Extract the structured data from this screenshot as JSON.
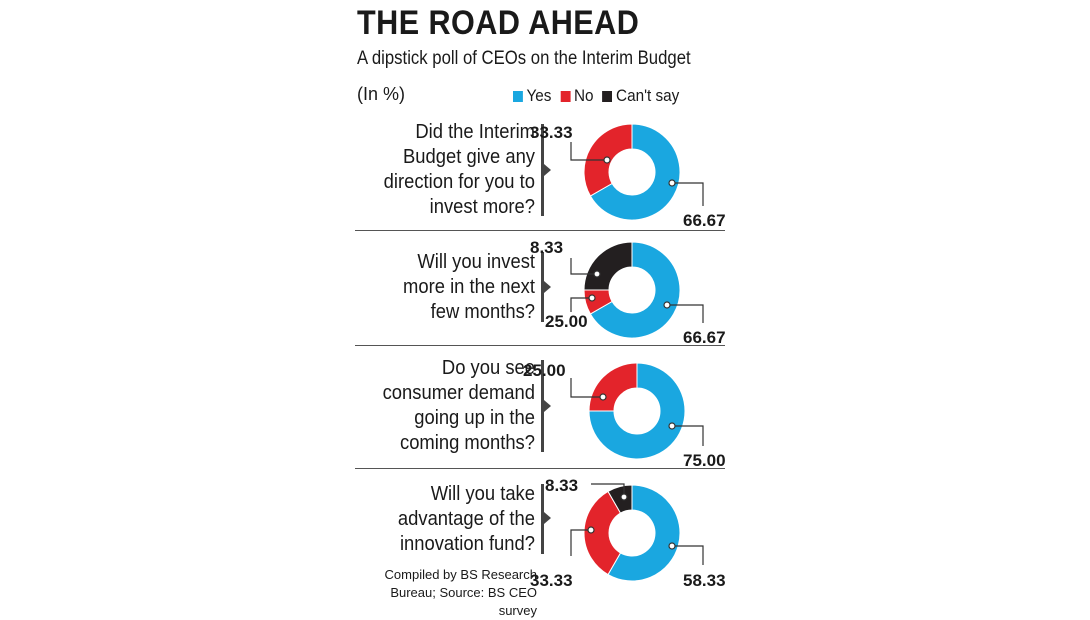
{
  "header": {
    "title": "THE ROAD AHEAD",
    "subtitle": "A dipstick poll of CEOs on the Interim Budget",
    "unit": "(In %)"
  },
  "legend": [
    {
      "label": "Yes",
      "color": "#1aa7e0"
    },
    {
      "label": "No",
      "color": "#e3242b"
    },
    {
      "label": "Can't say",
      "color": "#231f20"
    }
  ],
  "chart_data": [
    {
      "type": "pie",
      "title": "Did the Interim Budget give any direction for you to invest more?",
      "categories": [
        "Yes",
        "No",
        "Can't say"
      ],
      "values": [
        66.67,
        33.33,
        0
      ],
      "labels": [
        "66.67",
        "33.33"
      ]
    },
    {
      "type": "pie",
      "title": "Will you invest more in the next few months?",
      "categories": [
        "Yes",
        "No",
        "Can't say"
      ],
      "values": [
        66.67,
        8.33,
        25.0
      ],
      "labels": [
        "66.67",
        "8.33",
        "25.00"
      ]
    },
    {
      "type": "pie",
      "title": "Do you see consumer demand going up in the coming months?",
      "categories": [
        "Yes",
        "No",
        "Can't say"
      ],
      "values": [
        75.0,
        25.0,
        0
      ],
      "labels": [
        "75.00",
        "25.00"
      ]
    },
    {
      "type": "pie",
      "title": "Will you take advantage of the innovation fund?",
      "categories": [
        "Yes",
        "No",
        "Can't say"
      ],
      "values": [
        58.33,
        33.33,
        8.33
      ],
      "labels": [
        "58.33",
        "33.33",
        "8.33"
      ]
    }
  ],
  "questions": [
    [
      "Did the Interim",
      "Budget give any",
      "direction for you to",
      "invest more?"
    ],
    [
      "Will you invest",
      "more in the next",
      "few months?"
    ],
    [
      "Do you see",
      "consumer demand",
      "going up in the",
      "coming months?"
    ],
    [
      "Will you take",
      "advantage of the",
      "innovation fund?"
    ]
  ],
  "footer": {
    "line1": "Compiled by BS Research",
    "line2": "Bureau; Source: BS CEO survey"
  }
}
